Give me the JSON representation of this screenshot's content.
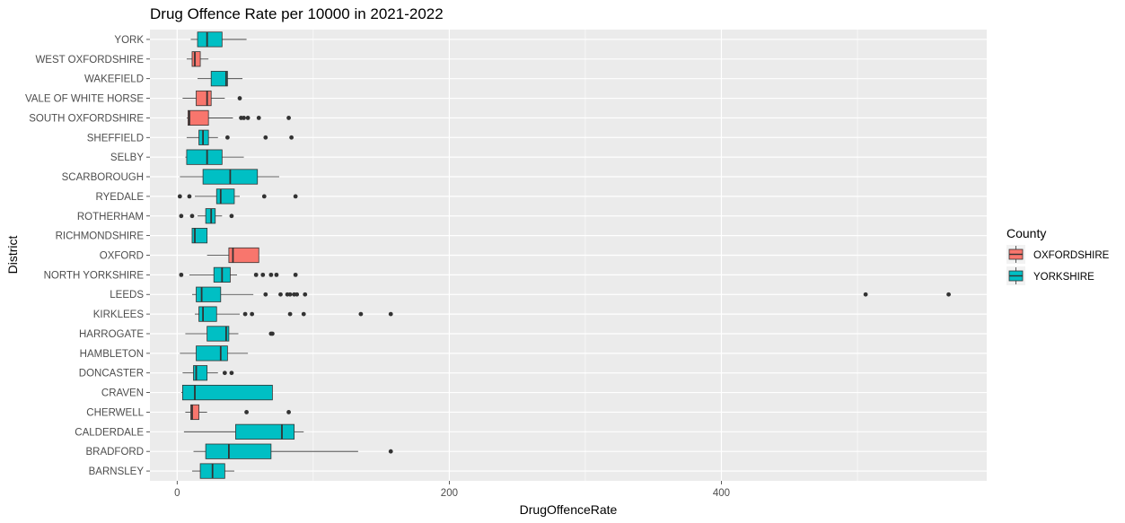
{
  "chart_data": {
    "type": "boxplot",
    "orientation": "horizontal",
    "title": "Drug Offence Rate per 10000 in 2021-2022",
    "xlabel": "DrugOffenceRate",
    "ylabel": "District",
    "xlim": [
      -20,
      595
    ],
    "x_ticks": [
      0,
      200,
      400
    ],
    "x_tick_labels": [
      "0",
      "200",
      "400"
    ],
    "grid": true,
    "legend": {
      "title": "County",
      "position": "right",
      "entries": [
        {
          "name": "OXFORDSHIRE",
          "color": "#F8766D"
        },
        {
          "name": "YORKSHIRE",
          "color": "#00BFC4"
        }
      ]
    },
    "categories": [
      "YORK",
      "WEST OXFORDSHIRE",
      "WAKEFIELD",
      "VALE OF WHITE HORSE",
      "SOUTH OXFORDSHIRE",
      "SHEFFIELD",
      "SELBY",
      "SCARBOROUGH",
      "RYEDALE",
      "ROTHERHAM",
      "RICHMONDSHIRE",
      "OXFORD",
      "NORTH YORKSHIRE",
      "LEEDS",
      "KIRKLEES",
      "HARROGATE",
      "HAMBLETON",
      "DONCASTER",
      "CRAVEN",
      "CHERWELL",
      "CALDERDALE",
      "BRADFORD",
      "BARNSLEY"
    ],
    "series": [
      {
        "district": "YORK",
        "county": "YORKSHIRE",
        "whisker_low": 10,
        "q1": 15,
        "median": 22,
        "q3": 33,
        "whisker_high": 51,
        "outliers": []
      },
      {
        "district": "WEST OXFORDSHIRE",
        "county": "OXFORDSHIRE",
        "whisker_low": 7,
        "q1": 11,
        "median": 13,
        "q3": 17,
        "whisker_high": 23,
        "outliers": []
      },
      {
        "district": "WAKEFIELD",
        "county": "YORKSHIRE",
        "whisker_low": 15,
        "q1": 25,
        "median": 36,
        "q3": 37,
        "whisker_high": 48,
        "outliers": []
      },
      {
        "district": "VALE OF WHITE HORSE",
        "county": "OXFORDSHIRE",
        "whisker_low": 4,
        "q1": 14,
        "median": 22,
        "q3": 25,
        "whisker_high": 35,
        "outliers": [
          46
        ]
      },
      {
        "district": "SOUTH OXFORDSHIRE",
        "county": "OXFORDSHIRE",
        "whisker_low": 7,
        "q1": 8,
        "median": 9,
        "q3": 23,
        "whisker_high": 41,
        "outliers": [
          47,
          49,
          52,
          60,
          82
        ]
      },
      {
        "district": "SHEFFIELD",
        "county": "YORKSHIRE",
        "whisker_low": 7,
        "q1": 16,
        "median": 19,
        "q3": 23,
        "whisker_high": 30,
        "outliers": [
          37,
          65,
          84
        ]
      },
      {
        "district": "SELBY",
        "county": "YORKSHIRE",
        "whisker_low": 6,
        "q1": 7,
        "median": 22,
        "q3": 33,
        "whisker_high": 49,
        "outliers": []
      },
      {
        "district": "SCARBOROUGH",
        "county": "YORKSHIRE",
        "whisker_low": 2,
        "q1": 19,
        "median": 39,
        "q3": 59,
        "whisker_high": 75,
        "outliers": []
      },
      {
        "district": "RYEDALE",
        "county": "YORKSHIRE",
        "whisker_low": 13,
        "q1": 29,
        "median": 32,
        "q3": 42,
        "whisker_high": 46,
        "outliers": [
          2,
          9,
          64,
          87
        ]
      },
      {
        "district": "ROTHERHAM",
        "county": "YORKSHIRE",
        "whisker_low": 15,
        "q1": 21,
        "median": 25,
        "q3": 28,
        "whisker_high": 33,
        "outliers": [
          3,
          11,
          40
        ]
      },
      {
        "district": "RICHMONDSHIRE",
        "county": "YORKSHIRE",
        "whisker_low": 11,
        "q1": 11,
        "median": 13,
        "q3": 22,
        "whisker_high": 22,
        "outliers": []
      },
      {
        "district": "OXFORD",
        "county": "OXFORDSHIRE",
        "whisker_low": 22,
        "q1": 38,
        "median": 41,
        "q3": 60,
        "whisker_high": 60,
        "outliers": []
      },
      {
        "district": "NORTH YORKSHIRE",
        "county": "YORKSHIRE",
        "whisker_low": 9,
        "q1": 27,
        "median": 33,
        "q3": 39,
        "whisker_high": 44,
        "outliers": [
          3,
          58,
          63,
          69,
          73,
          87
        ]
      },
      {
        "district": "LEEDS",
        "county": "YORKSHIRE",
        "whisker_low": 11,
        "q1": 14,
        "median": 18,
        "q3": 32,
        "whisker_high": 56,
        "outliers": [
          65,
          76,
          81,
          83,
          86,
          88,
          94,
          506,
          567
        ]
      },
      {
        "district": "KIRKLEES",
        "county": "YORKSHIRE",
        "whisker_low": 13,
        "q1": 16,
        "median": 19,
        "q3": 29,
        "whisker_high": 46,
        "outliers": [
          50,
          55,
          83,
          93,
          135,
          157
        ]
      },
      {
        "district": "HARROGATE",
        "county": "YORKSHIRE",
        "whisker_low": 6,
        "q1": 22,
        "median": 36,
        "q3": 38,
        "whisker_high": 45,
        "outliers": [
          69,
          70
        ]
      },
      {
        "district": "HAMBLETON",
        "county": "YORKSHIRE",
        "whisker_low": 2,
        "q1": 14,
        "median": 32,
        "q3": 37,
        "whisker_high": 52,
        "outliers": []
      },
      {
        "district": "DONCASTER",
        "county": "YORKSHIRE",
        "whisker_low": 4,
        "q1": 12,
        "median": 14,
        "q3": 22,
        "whisker_high": 30,
        "outliers": [
          35,
          40
        ]
      },
      {
        "district": "CRAVEN",
        "county": "YORKSHIRE",
        "whisker_low": 3,
        "q1": 4,
        "median": 13,
        "q3": 70,
        "whisker_high": 70,
        "outliers": []
      },
      {
        "district": "CHERWELL",
        "county": "OXFORDSHIRE",
        "whisker_low": 6,
        "q1": 10,
        "median": 11,
        "q3": 16,
        "whisker_high": 22,
        "outliers": [
          51,
          82
        ]
      },
      {
        "district": "CALDERDALE",
        "county": "YORKSHIRE",
        "whisker_low": 5,
        "q1": 43,
        "median": 77,
        "q3": 86,
        "whisker_high": 93,
        "outliers": []
      },
      {
        "district": "BRADFORD",
        "county": "YORKSHIRE",
        "whisker_low": 12,
        "q1": 21,
        "median": 38,
        "q3": 69,
        "whisker_high": 133,
        "outliers": [
          157
        ]
      },
      {
        "district": "BARNSLEY",
        "county": "YORKSHIRE",
        "whisker_low": 11,
        "q1": 17,
        "median": 26,
        "q3": 35,
        "whisker_high": 42,
        "outliers": []
      }
    ]
  }
}
